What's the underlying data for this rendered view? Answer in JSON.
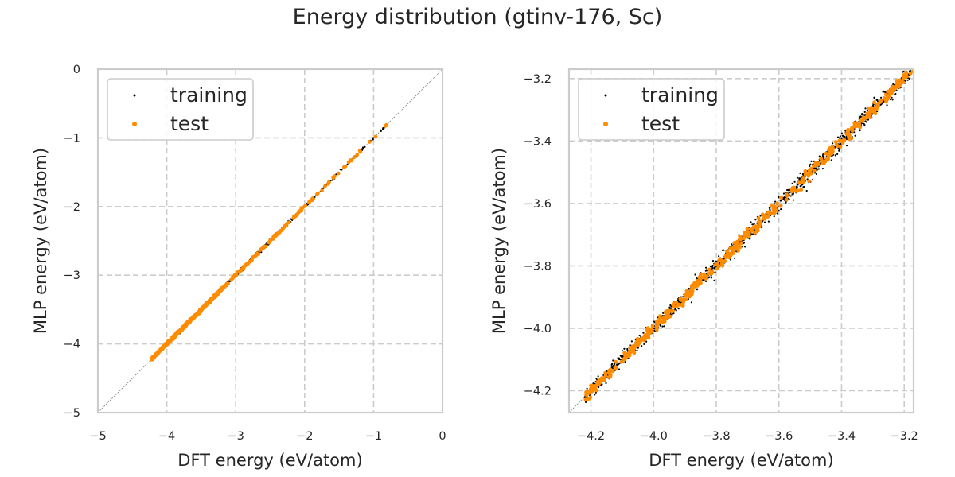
{
  "figure": {
    "title": "Energy distribution (gtinv-176, Sc)"
  },
  "colors": {
    "training": "#000000",
    "test": "#ff8c00",
    "grid": "#cccccc",
    "spine": "#cccccc",
    "diagonal": "#808080"
  },
  "chart_data": [
    {
      "type": "scatter",
      "title": "",
      "xlabel": "DFT energy (eV/atom)",
      "ylabel": "MLP energy (eV/atom)",
      "xlim": [
        -5,
        0
      ],
      "ylim": [
        -5,
        0
      ],
      "xticks": [
        -5,
        -4,
        -3,
        -2,
        -1,
        0
      ],
      "yticks": [
        -5,
        -4,
        -3,
        -2,
        -1,
        0
      ],
      "grid": true,
      "legend": "top-left",
      "series": [
        {
          "name": "training",
          "x_range": [
            -4.22,
            -0.79
          ],
          "approx_points": 900
        },
        {
          "name": "test",
          "x_range": [
            -4.22,
            -0.82
          ],
          "approx_points": 400
        }
      ],
      "reference_line": "y = x"
    },
    {
      "type": "scatter",
      "title": "",
      "xlabel": "DFT energy (eV/atom)",
      "ylabel": "MLP energy (eV/atom)",
      "xlim": [
        -4.27,
        -3.17
      ],
      "ylim": [
        -4.27,
        -3.17
      ],
      "xticks": [
        -4.2,
        -4.0,
        -3.8,
        -3.6,
        -3.4,
        -3.2
      ],
      "yticks": [
        -4.2,
        -4.0,
        -3.8,
        -3.6,
        -3.4,
        -3.2
      ],
      "grid": true,
      "legend": "top-left",
      "series": [
        {
          "name": "training",
          "x_range": [
            -4.22,
            -3.18
          ],
          "approx_points": 900
        },
        {
          "name": "test",
          "x_range": [
            -4.22,
            -3.18
          ],
          "approx_points": 400
        }
      ],
      "reference_line": "y = x"
    }
  ]
}
